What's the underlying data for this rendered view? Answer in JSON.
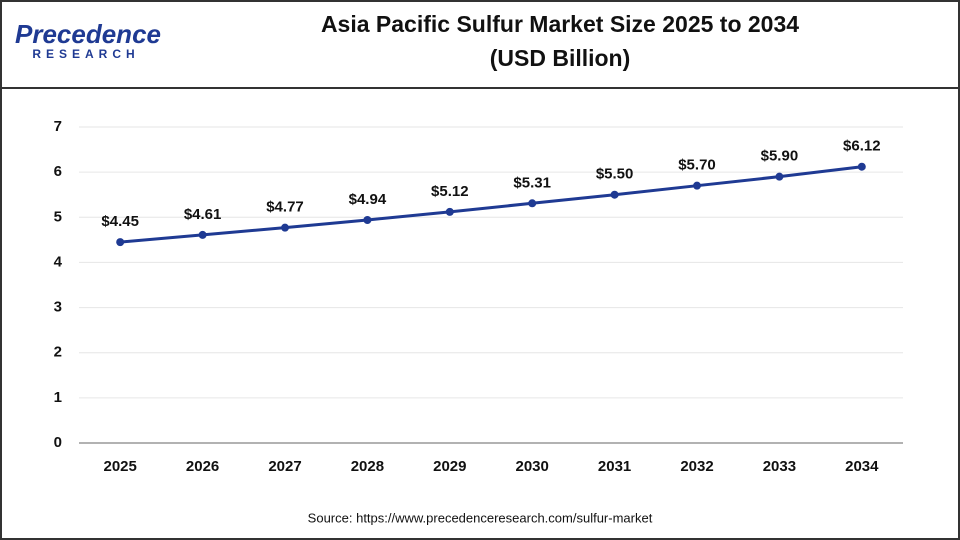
{
  "logo": {
    "name": "Precedence",
    "tagline": "RESEARCH"
  },
  "chart_data": {
    "type": "line",
    "title": "Asia Pacific Sulfur Market Size 2025 to 2034",
    "subtitle": "(USD Billion)",
    "categories": [
      "2025",
      "2026",
      "2027",
      "2028",
      "2029",
      "2030",
      "2031",
      "2032",
      "2033",
      "2034"
    ],
    "values": [
      4.45,
      4.61,
      4.77,
      4.94,
      5.12,
      5.31,
      5.5,
      5.7,
      5.9,
      6.12
    ],
    "value_labels": [
      "$4.45",
      "$4.61",
      "$4.77",
      "$4.94",
      "$5.12",
      "$5.31",
      "$5.50",
      "$5.70",
      "$5.90",
      "$6.12"
    ],
    "color": "#1f3a93",
    "ylim": [
      0,
      7
    ],
    "yticks": [
      0,
      1,
      2,
      3,
      4,
      5,
      6,
      7
    ],
    "grid": true,
    "source": "Source: https://www.precedenceresearch.com/sulfur-market"
  }
}
